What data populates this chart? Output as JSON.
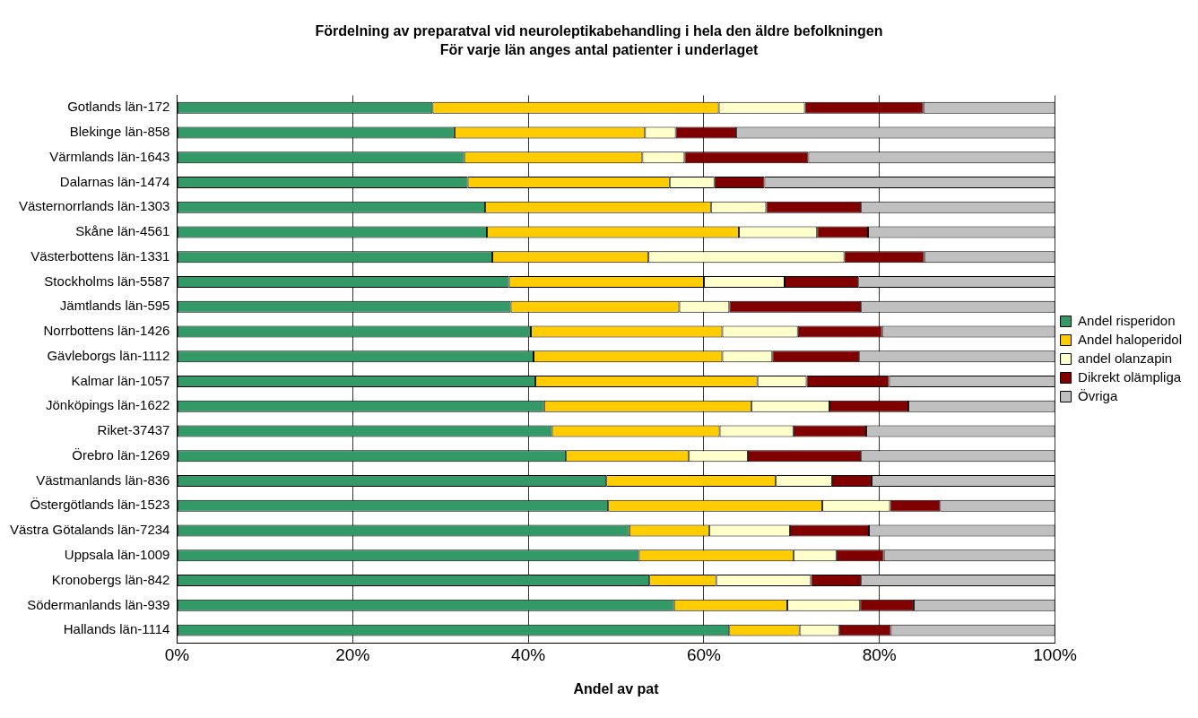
{
  "chart_data": {
    "type": "bar",
    "orientation": "horizontal",
    "stacked": true,
    "title": "Fördelning av preparatval vid neuroleptikabehandling i hela den äldre befolkningen",
    "subtitle": "För varje län anges antal patienter i underlaget",
    "xlabel": "Andel av pat",
    "categories": [
      "Gotlands län-172",
      "Blekinge län-858",
      "Värmlands län-1643",
      "Dalarnas län-1474",
      "Västernorrlands län-1303",
      "Skåne län-4561",
      "Västerbottens län-1331",
      "Stockholms län-5587",
      "Jämtlands län-595",
      "Norrbottens län-1426",
      "Gävleborgs län-1112",
      "Kalmar län-1057",
      "Jönköpings län-1622",
      "Riket-37437",
      "Örebro län-1269",
      "Västmanlands län-836",
      "Östergötlands län-1523",
      "Västra Götalands län-7234",
      "Uppsala län-1009",
      "Kronobergs län-842",
      "Södermanlands län-939",
      "Hallands län-1114"
    ],
    "series": [
      {
        "name": "Andel risperidon",
        "color": "#339966",
        "values": [
          29.1,
          31.6,
          32.7,
          33.1,
          35.1,
          35.3,
          35.9,
          37.8,
          38.0,
          40.3,
          40.6,
          40.8,
          41.8,
          42.7,
          44.3,
          48.9,
          49.1,
          51.5,
          52.6,
          53.8,
          56.6,
          62.9
        ]
      },
      {
        "name": "Andel haloperidol",
        "color": "#ffcc00",
        "values": [
          32.6,
          21.7,
          20.3,
          23.0,
          25.7,
          28.7,
          17.8,
          22.2,
          19.2,
          21.8,
          21.5,
          25.3,
          23.6,
          19.1,
          14.0,
          19.3,
          24.4,
          9.1,
          17.6,
          7.6,
          12.9,
          8.0
        ]
      },
      {
        "name": "andel olanzapin",
        "color": "#ffffcc",
        "values": [
          9.8,
          3.5,
          4.8,
          5.1,
          6.3,
          8.9,
          22.3,
          9.2,
          5.7,
          8.6,
          5.7,
          5.6,
          8.9,
          8.4,
          6.7,
          6.4,
          7.7,
          9.2,
          4.9,
          10.8,
          8.3,
          4.5
        ]
      },
      {
        "name": "Dikrekt olämpliga",
        "color": "#800000",
        "values": [
          13.5,
          6.9,
          14.1,
          5.7,
          10.8,
          5.8,
          9.1,
          8.4,
          15.0,
          9.6,
          9.9,
          9.4,
          9.0,
          8.3,
          12.9,
          4.5,
          5.7,
          9.0,
          5.4,
          5.7,
          6.1,
          5.9
        ]
      },
      {
        "name": "Övriga",
        "color": "#c0c0c0",
        "values": [
          15.0,
          36.3,
          28.1,
          33.1,
          22.1,
          21.3,
          14.9,
          22.4,
          22.1,
          19.7,
          22.3,
          18.9,
          16.7,
          21.5,
          22.1,
          20.9,
          13.1,
          21.2,
          19.5,
          22.1,
          16.1,
          18.7
        ]
      }
    ],
    "xlim": [
      0,
      100
    ],
    "xticks": [
      {
        "value": 0,
        "label": "0%"
      },
      {
        "value": 20,
        "label": "20%"
      },
      {
        "value": 40,
        "label": "40%"
      },
      {
        "value": 60,
        "label": "60%"
      },
      {
        "value": 80,
        "label": "80%"
      },
      {
        "value": 100,
        "label": "100%"
      }
    ],
    "grid": "x",
    "legend": "right"
  }
}
